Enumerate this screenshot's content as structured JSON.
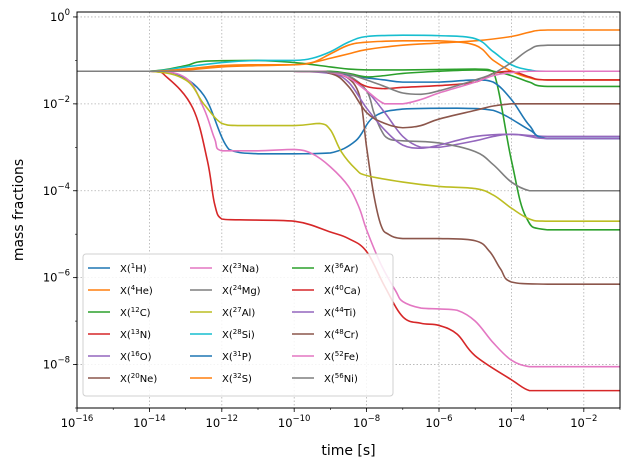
{
  "chart_data": {
    "type": "line",
    "xlabel": "time [s]",
    "ylabel": "mass fractions",
    "xscale": "log",
    "yscale": "log",
    "xlim": [
      1e-16,
      0.1
    ],
    "ylim": [
      1e-09,
      1.3
    ],
    "grid": true,
    "legend_position": "lower-left",
    "legend_columns": 3,
    "xticks": [
      {
        "value": 1e-16,
        "base": "10",
        "exp": "−16"
      },
      {
        "value": 1e-14,
        "base": "10",
        "exp": "−14"
      },
      {
        "value": 1e-12,
        "base": "10",
        "exp": "−12"
      },
      {
        "value": 1e-10,
        "base": "10",
        "exp": "−10"
      },
      {
        "value": 1e-08,
        "base": "10",
        "exp": "−8"
      },
      {
        "value": 1e-06,
        "base": "10",
        "exp": "−6"
      },
      {
        "value": 0.0001,
        "base": "10",
        "exp": "−4"
      },
      {
        "value": 0.01,
        "base": "10",
        "exp": "−2"
      }
    ],
    "yticks": [
      {
        "value": 1e-08,
        "base": "10",
        "exp": "−8"
      },
      {
        "value": 1e-06,
        "base": "10",
        "exp": "−6"
      },
      {
        "value": 0.0001,
        "base": "10",
        "exp": "−4"
      },
      {
        "value": 0.01,
        "base": "10",
        "exp": "−2"
      },
      {
        "value": 1,
        "base": "10",
        "exp": "0"
      }
    ],
    "series": [
      {
        "name": "X(1H)",
        "iso": "1",
        "el": "H",
        "color": "#1f77b4",
        "x_log": [
          -16,
          -14,
          -13.3,
          -12.5,
          -11.8,
          -11,
          -10,
          -9,
          -8.3,
          -7.8,
          -7,
          -5.5,
          -4.5,
          -3.5,
          -3,
          -1
        ],
        "y_log": [
          -1.25,
          -1.25,
          -1.3,
          -1.8,
          -3.05,
          -3.15,
          -3.15,
          -3.13,
          -2.85,
          -2.3,
          -2.12,
          -2.1,
          -2.15,
          -2.6,
          -2.8,
          -2.8
        ]
      },
      {
        "name": "X(4He)",
        "iso": "4",
        "el": "He",
        "color": "#ff7f0e",
        "x_log": [
          -16,
          -14,
          -13,
          -12,
          -11,
          -10,
          -9.5,
          -9,
          -8.5,
          -8,
          -7,
          -6,
          -5,
          -4,
          -3.5,
          -3,
          -1
        ],
        "y_log": [
          -1.25,
          -1.25,
          -1.22,
          -1.15,
          -1.12,
          -1.1,
          -1.05,
          -0.95,
          -0.85,
          -0.75,
          -0.65,
          -0.6,
          -0.55,
          -0.45,
          -0.35,
          -0.3,
          -0.3
        ]
      },
      {
        "name": "X(12C)",
        "iso": "12",
        "el": "C",
        "color": "#2ca02c",
        "x_log": [
          -16,
          -14,
          -13,
          -12.5,
          -11,
          -10,
          -9,
          -8.5,
          -8,
          -7,
          -5,
          -4.5,
          -4,
          -3.6,
          -3,
          -1
        ],
        "y_log": [
          -1.25,
          -1.25,
          -1.12,
          -1.02,
          -1.0,
          -1.05,
          -1.15,
          -1.2,
          -1.22,
          -1.22,
          -1.2,
          -1.25,
          -3.3,
          -4.6,
          -4.9,
          -4.9
        ]
      },
      {
        "name": "X(13N)",
        "iso": "13",
        "el": "N",
        "color": "#d62728",
        "x_log": [
          -16,
          -14,
          -13.5,
          -12.8,
          -12.4,
          -12.2,
          -12,
          -11.5,
          -10,
          -9,
          -8.5,
          -8,
          -7.5,
          -7,
          -6.5,
          -6,
          -5.5,
          -5,
          -4,
          -3.5,
          -3,
          -1
        ],
        "y_log": [
          -1.25,
          -1.25,
          -1.4,
          -2.1,
          -3.3,
          -4.3,
          -4.65,
          -4.67,
          -4.7,
          -4.95,
          -5.1,
          -5.4,
          -6.2,
          -6.9,
          -7.05,
          -7.1,
          -7.3,
          -7.8,
          -8.35,
          -8.6,
          -8.6,
          -8.6
        ]
      },
      {
        "name": "X(16O)",
        "iso": "16",
        "el": "O",
        "color": "#9467bd",
        "x_log": [
          -16,
          -12,
          -10,
          -9,
          -8.5,
          -8,
          -7.5,
          -7,
          -6.5,
          -6,
          -5,
          -4.5,
          -4,
          -3,
          -1
        ],
        "y_log": [
          -1.25,
          -1.25,
          -1.25,
          -1.3,
          -1.4,
          -1.7,
          -2.2,
          -2.75,
          -3.0,
          -3.0,
          -2.85,
          -2.75,
          -2.7,
          -2.75,
          -2.75
        ]
      },
      {
        "name": "X(20Ne)",
        "iso": "20",
        "el": "Ne",
        "color": "#8c564b",
        "x_log": [
          -16,
          -12,
          -10,
          -9,
          -8.6,
          -8.2,
          -8,
          -7.8,
          -7.6,
          -7.4,
          -7,
          -6,
          -5,
          -4.6,
          -4.3,
          -4,
          -3,
          -1
        ],
        "y_log": [
          -1.25,
          -1.25,
          -1.25,
          -1.27,
          -1.35,
          -1.8,
          -3.0,
          -4.1,
          -4.8,
          -5.0,
          -5.1,
          -5.1,
          -5.15,
          -5.4,
          -5.8,
          -6.1,
          -6.15,
          -6.15
        ]
      },
      {
        "name": "X(23Na)",
        "iso": "23",
        "el": "Na",
        "color": "#e377c2",
        "x_log": [
          -16,
          -14,
          -13,
          -12.5,
          -12.2,
          -12,
          -11,
          -10,
          -9.5,
          -9,
          -8.5,
          -8.2,
          -8,
          -7.6,
          -7.2,
          -7,
          -6.5,
          -6,
          -5.5,
          -5,
          -4.5,
          -4,
          -3.5,
          -3,
          -1
        ],
        "y_log": [
          -1.25,
          -1.25,
          -1.4,
          -2.1,
          -2.8,
          -3.08,
          -3.08,
          -3.05,
          -3.15,
          -3.45,
          -3.9,
          -4.4,
          -4.9,
          -5.7,
          -6.3,
          -6.55,
          -6.7,
          -6.72,
          -6.75,
          -7.0,
          -7.5,
          -7.9,
          -8.05,
          -8.05,
          -8.05
        ]
      },
      {
        "name": "X(24Mg)",
        "iso": "24",
        "el": "Mg",
        "color": "#7f7f7f",
        "x_log": [
          -16,
          -10,
          -9,
          -8.5,
          -8,
          -7.8,
          -7.6,
          -7.4,
          -7,
          -6,
          -5,
          -4.5,
          -4,
          -3.5,
          -3,
          -1
        ],
        "y_log": [
          -1.25,
          -1.25,
          -1.27,
          -1.35,
          -1.7,
          -2.2,
          -2.6,
          -2.8,
          -2.85,
          -2.9,
          -3.1,
          -3.4,
          -3.8,
          -4.0,
          -4.0,
          -4.0
        ]
      },
      {
        "name": "X(27Al)",
        "iso": "27",
        "el": "Al",
        "color": "#bcbd22",
        "x_log": [
          -16,
          -14,
          -13,
          -12.5,
          -12,
          -11.5,
          -10,
          -9.3,
          -9,
          -8.7,
          -8.3,
          -8,
          -7,
          -6,
          -5,
          -4.5,
          -4,
          -3.5,
          -3,
          -1
        ],
        "y_log": [
          -1.25,
          -1.25,
          -1.45,
          -2.0,
          -2.45,
          -2.5,
          -2.5,
          -2.45,
          -2.6,
          -3.1,
          -3.5,
          -3.65,
          -3.8,
          -3.9,
          -3.95,
          -4.1,
          -4.4,
          -4.65,
          -4.7,
          -4.7
        ]
      },
      {
        "name": "X(28Si)",
        "iso": "28",
        "el": "Si",
        "color": "#17becf",
        "x_log": [
          -16,
          -14,
          -13,
          -12,
          -11,
          -10,
          -9.5,
          -9,
          -8.5,
          -8,
          -7,
          -6,
          -5,
          -4.5,
          -4,
          -3.5,
          -3,
          -1
        ],
        "y_log": [
          -1.25,
          -1.25,
          -1.15,
          -1.05,
          -1.0,
          -1.0,
          -0.95,
          -0.8,
          -0.58,
          -0.45,
          -0.42,
          -0.43,
          -0.5,
          -0.8,
          -1.1,
          -1.22,
          -1.25,
          -1.25
        ]
      },
      {
        "name": "X(31P)",
        "iso": "31",
        "el": "P",
        "color": "#1f77b4",
        "x_log": [
          -16,
          -12,
          -10,
          -9,
          -8.5,
          -8,
          -7.5,
          -7,
          -6,
          -5,
          -4.5,
          -4,
          -3.5,
          -3,
          -1
        ],
        "y_log": [
          -1.25,
          -1.25,
          -1.25,
          -1.27,
          -1.33,
          -1.4,
          -1.45,
          -1.5,
          -1.5,
          -1.45,
          -1.5,
          -1.9,
          -2.5,
          -2.8,
          -2.8
        ]
      },
      {
        "name": "X(32S)",
        "iso": "32",
        "el": "S",
        "color": "#ff7f0e",
        "x_log": [
          -16,
          -14,
          -13,
          -12,
          -11,
          -10,
          -9.5,
          -9,
          -8.5,
          -8,
          -7,
          -6,
          -5,
          -4.5,
          -4,
          -3.5,
          -3,
          -1
        ],
        "y_log": [
          -1.25,
          -1.25,
          -1.2,
          -1.12,
          -1.1,
          -1.1,
          -1.05,
          -0.85,
          -0.65,
          -0.58,
          -0.55,
          -0.55,
          -0.65,
          -1.0,
          -1.25,
          -1.4,
          -1.45,
          -1.45
        ]
      },
      {
        "name": "X(36Ar)",
        "iso": "36",
        "el": "Ar",
        "color": "#2ca02c",
        "x_log": [
          -16,
          -10,
          -9,
          -8.5,
          -8,
          -7.5,
          -7,
          -6,
          -5,
          -4.5,
          -4,
          -3.5,
          -3,
          -1
        ],
        "y_log": [
          -1.25,
          -1.25,
          -1.25,
          -1.3,
          -1.38,
          -1.35,
          -1.3,
          -1.25,
          -1.22,
          -1.25,
          -1.35,
          -1.5,
          -1.6,
          -1.6
        ]
      },
      {
        "name": "X(40Ca)",
        "iso": "40",
        "el": "Ca",
        "color": "#d62728",
        "x_log": [
          -16,
          -10,
          -9,
          -8.5,
          -8,
          -7.5,
          -7,
          -6,
          -5,
          -4.5,
          -4,
          -3.5,
          -3,
          -1
        ],
        "y_log": [
          -1.25,
          -1.25,
          -1.28,
          -1.4,
          -1.6,
          -1.65,
          -1.62,
          -1.58,
          -1.5,
          -1.3,
          -1.25,
          -1.38,
          -1.45,
          -1.45
        ]
      },
      {
        "name": "X(44Ti)",
        "iso": "44",
        "el": "Ti",
        "color": "#9467bd",
        "x_log": [
          -16,
          -10,
          -9,
          -8.5,
          -8,
          -7.5,
          -7,
          -6.5,
          -6,
          -5,
          -4,
          -3.5,
          -3,
          -1
        ],
        "y_log": [
          -1.25,
          -1.25,
          -1.3,
          -1.5,
          -2.1,
          -2.6,
          -2.95,
          -3.02,
          -2.95,
          -2.75,
          -2.7,
          -2.75,
          -2.8,
          -2.8
        ]
      },
      {
        "name": "X(48Cr)",
        "iso": "48",
        "el": "Cr",
        "color": "#8c564b",
        "x_log": [
          -16,
          -10,
          -9,
          -8.5,
          -8,
          -7.5,
          -7,
          -6.5,
          -6,
          -5,
          -4.5,
          -4,
          -3.5,
          -3,
          -1
        ],
        "y_log": [
          -1.25,
          -1.25,
          -1.3,
          -1.6,
          -2.2,
          -2.45,
          -2.55,
          -2.5,
          -2.35,
          -2.15,
          -2.05,
          -2.0,
          -2.0,
          -2.0,
          -2.0
        ]
      },
      {
        "name": "X(52Fe)",
        "iso": "52",
        "el": "Fe",
        "color": "#e377c2",
        "x_log": [
          -16,
          -10,
          -9,
          -8.5,
          -8,
          -7.5,
          -7,
          -6.5,
          -6,
          -5,
          -4.5,
          -4,
          -3.5,
          -3,
          -1
        ],
        "y_log": [
          -1.25,
          -1.25,
          -1.28,
          -1.4,
          -1.7,
          -2.0,
          -2.0,
          -1.9,
          -1.75,
          -1.5,
          -1.35,
          -1.28,
          -1.25,
          -1.25,
          -1.25
        ]
      },
      {
        "name": "X(56Ni)",
        "iso": "56",
        "el": "Ni",
        "color": "#7f7f7f",
        "x_log": [
          -16,
          -10,
          -9,
          -8.5,
          -8,
          -7.5,
          -7,
          -6.5,
          -6,
          -5,
          -4.5,
          -4,
          -3.5,
          -3,
          -1
        ],
        "y_log": [
          -1.25,
          -1.25,
          -1.27,
          -1.32,
          -1.45,
          -1.6,
          -1.75,
          -1.78,
          -1.7,
          -1.45,
          -1.3,
          -1.05,
          -0.75,
          -0.65,
          -0.65
        ]
      }
    ]
  }
}
